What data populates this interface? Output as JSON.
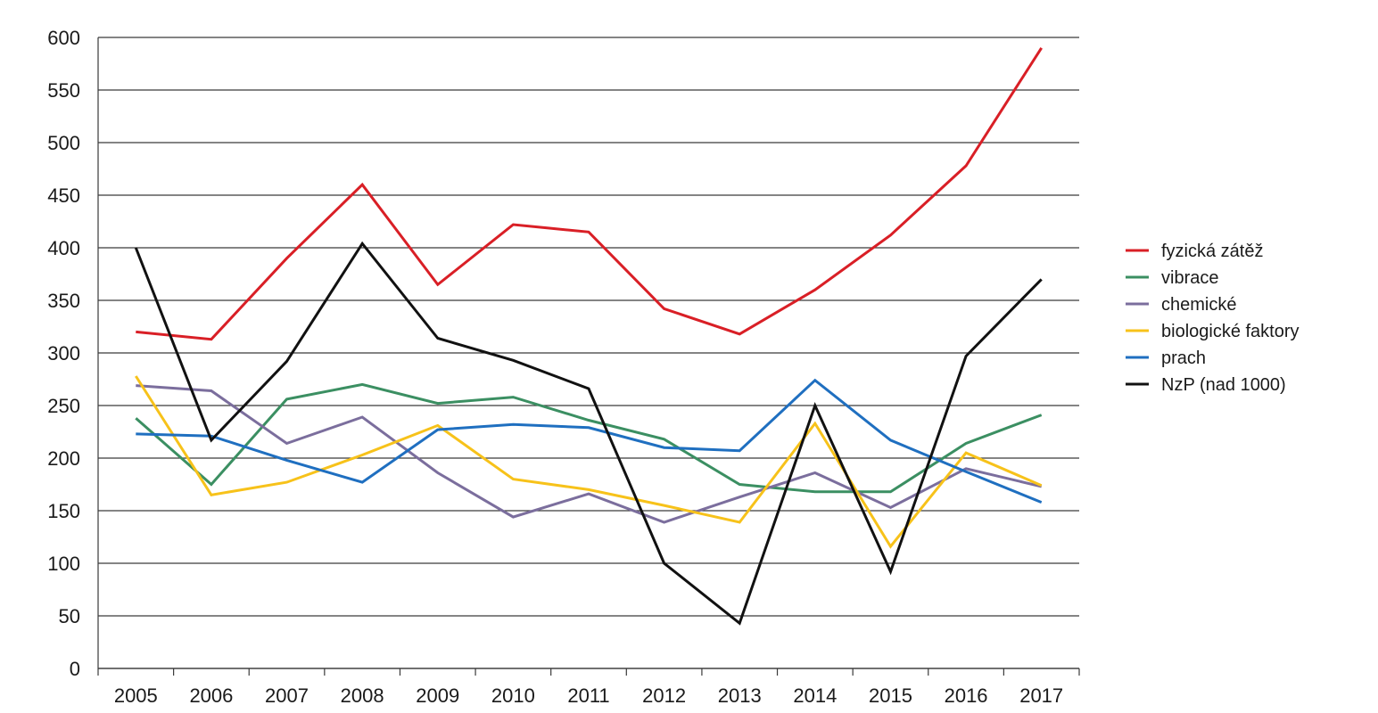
{
  "chart_data": {
    "type": "line",
    "title": "",
    "xlabel": "",
    "ylabel": "",
    "categories": [
      "2005",
      "2006",
      "2007",
      "2008",
      "2009",
      "2010",
      "2011",
      "2012",
      "2013",
      "2014",
      "2015",
      "2016",
      "2017"
    ],
    "ylim": [
      0,
      600
    ],
    "yticks": [
      0,
      50,
      100,
      150,
      200,
      250,
      300,
      350,
      400,
      450,
      500,
      550,
      600
    ],
    "grid": "horizontal",
    "legend_position": "right",
    "series": [
      {
        "name": "fyzická zátěž",
        "color": "#d91f26",
        "values": [
          320,
          313,
          390,
          460,
          365,
          422,
          415,
          342,
          318,
          360,
          412,
          478,
          590
        ]
      },
      {
        "name": "vibrace",
        "color": "#3b8f62",
        "values": [
          238,
          175,
          256,
          270,
          252,
          258,
          236,
          218,
          175,
          168,
          168,
          214,
          241
        ]
      },
      {
        "name": "chemické",
        "color": "#7b6e9d",
        "values": [
          269,
          264,
          214,
          239,
          186,
          144,
          166,
          139,
          163,
          186,
          153,
          190,
          173
        ]
      },
      {
        "name": "biologické faktory",
        "color": "#f7c21a",
        "values": [
          278,
          165,
          177,
          203,
          231,
          180,
          170,
          155,
          139,
          233,
          116,
          205,
          174
        ]
      },
      {
        "name": "prach",
        "color": "#1f6fc0",
        "values": [
          223,
          221,
          198,
          177,
          227,
          232,
          229,
          210,
          207,
          274,
          217,
          187,
          158
        ]
      },
      {
        "name": "NzP (nad 1000)",
        "color": "#111111",
        "values": [
          400,
          217,
          292,
          404,
          314,
          293,
          266,
          100,
          43,
          250,
          92,
          297,
          370
        ]
      }
    ]
  }
}
